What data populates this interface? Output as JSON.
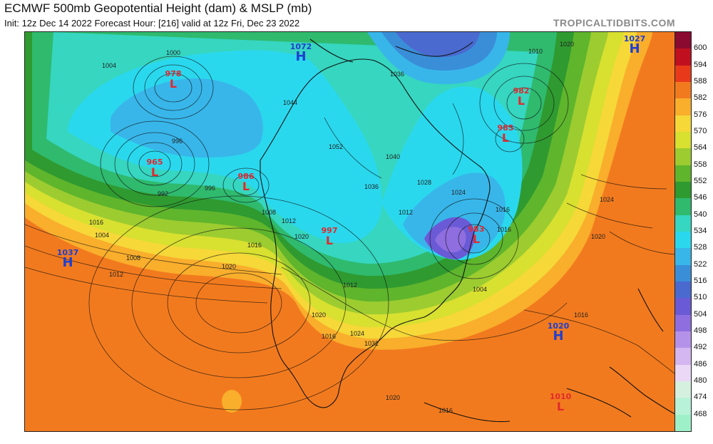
{
  "header": {
    "title": "ECMWF 500mb Geopotential Height (dam) & MSLP (mb)",
    "subtitle": "Init: 12z Dec 14 2022   Forecast Hour: [216]   valid at 12z Fri, Dec 23 2022",
    "brand": "TROPICALTIDBITS.COM"
  },
  "colorbar": {
    "ticks": [
      "600",
      "594",
      "588",
      "582",
      "576",
      "570",
      "564",
      "558",
      "552",
      "546",
      "540",
      "534",
      "528",
      "522",
      "516",
      "510",
      "504",
      "498",
      "492",
      "486",
      "480",
      "474",
      "468"
    ],
    "colors": [
      "#8a0a30",
      "#c01020",
      "#e83a1a",
      "#f27a1e",
      "#f9ae2c",
      "#f6d838",
      "#d8e030",
      "#9ccc30",
      "#5fb52c",
      "#2f9a30",
      "#2fba6e",
      "#36d6c0",
      "#2ad8ee",
      "#38b6ea",
      "#3a8ed8",
      "#4a6ad0",
      "#6a5ad6",
      "#8f6ee0",
      "#b592ea",
      "#d4b6f0",
      "#ead8f6",
      "#d6f0e0",
      "#b8f2d8",
      "#9ef0c8"
    ]
  },
  "centers": [
    {
      "type": "L",
      "value": "978",
      "color": "#e1292d"
    },
    {
      "type": "L",
      "value": "965",
      "color": "#e1292d"
    },
    {
      "type": "L",
      "value": "986",
      "color": "#e1292d"
    },
    {
      "type": "L",
      "value": "997",
      "color": "#e1292d"
    },
    {
      "type": "L",
      "value": "982",
      "color": "#e1292d"
    },
    {
      "type": "L",
      "value": "985",
      "color": "#e1292d"
    },
    {
      "type": "L",
      "value": "983",
      "color": "#e1292d"
    },
    {
      "type": "L",
      "value": "1010",
      "color": "#e1292d"
    },
    {
      "type": "H",
      "value": "1072",
      "color": "#1f3fcf"
    },
    {
      "type": "H",
      "value": "1027",
      "color": "#1f3fcf"
    },
    {
      "type": "H",
      "value": "1037",
      "color": "#1f3fcf"
    },
    {
      "type": "H",
      "value": "1020",
      "color": "#1f3fcf"
    }
  ],
  "isobar_labels": [
    "1004",
    "996",
    "992",
    "1000",
    "996",
    "1008",
    "1012",
    "1020",
    "1016",
    "1016",
    "1004",
    "1008",
    "1012",
    "1020",
    "1036",
    "1044",
    "1052",
    "1040",
    "1028",
    "1036",
    "1024",
    "1012",
    "1016",
    "1010",
    "1020",
    "1016",
    "1024",
    "1020",
    "1004",
    "1012",
    "1016",
    "1020",
    "1016",
    "1024",
    "1032",
    "1020",
    "1016"
  ]
}
